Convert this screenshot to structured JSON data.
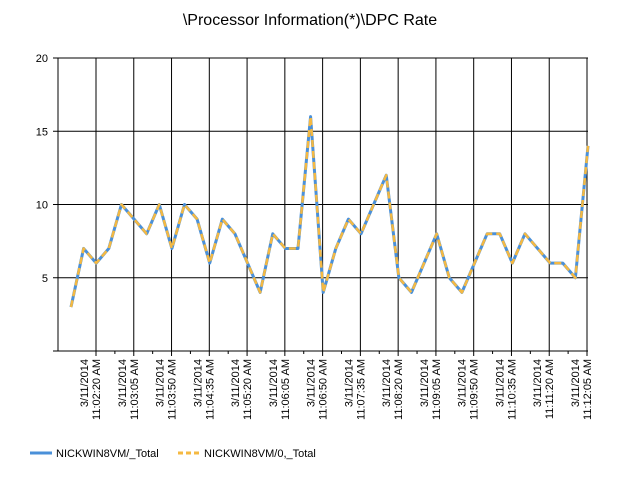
{
  "chart_data": {
    "type": "line",
    "title": "\\Processor Information(*)\\DPC Rate",
    "xlabel": "",
    "ylabel": "",
    "ylim": [
      0,
      20
    ],
    "yticks": [
      5,
      10,
      15,
      20
    ],
    "grid": true,
    "legend_position": "bottom-left",
    "x_tick_labels": [
      [
        "3/11/2014",
        "11:02:20 AM"
      ],
      [
        "3/11/2014",
        "11:03:05 AM"
      ],
      [
        "3/11/2014",
        "11:03:50 AM"
      ],
      [
        "3/11/2014",
        "11:04:35 AM"
      ],
      [
        "3/11/2014",
        "11:05:20 AM"
      ],
      [
        "3/11/2014",
        "11:06:05 AM"
      ],
      [
        "3/11/2014",
        "11:06:50 AM"
      ],
      [
        "3/11/2014",
        "11:07:35 AM"
      ],
      [
        "3/11/2014",
        "11:08:20 AM"
      ],
      [
        "3/11/2014",
        "11:09:05 AM"
      ],
      [
        "3/11/2014",
        "11:09:50 AM"
      ],
      [
        "3/11/2014",
        "11:10:35 AM"
      ],
      [
        "3/11/2014",
        "11:11:20 AM"
      ],
      [
        "3/11/2014",
        "11:12:05 AM"
      ]
    ],
    "series": [
      {
        "name": "NICKWIN8VM/_Total",
        "color": "#4a90d9",
        "style": "solid",
        "values": [
          3,
          7,
          6,
          7,
          10,
          9,
          8,
          10,
          7,
          10,
          9,
          6,
          9,
          8,
          6,
          4,
          8,
          7,
          7,
          16,
          4,
          7,
          9,
          8,
          10,
          12,
          5,
          4,
          6,
          8,
          5,
          4,
          6,
          8,
          8,
          6,
          8,
          7,
          6,
          6,
          5,
          14
        ]
      },
      {
        "name": "NICKWIN8VM/0,_Total",
        "color": "#f5b942",
        "style": "dashed",
        "values": [
          3,
          7,
          6,
          7,
          10,
          9,
          8,
          10,
          7,
          10,
          9,
          6,
          9,
          8,
          6,
          4,
          8,
          7,
          7,
          16,
          4,
          7,
          9,
          8,
          10,
          12,
          5,
          4,
          6,
          8,
          5,
          4,
          6,
          8,
          8,
          6,
          8,
          7,
          6,
          6,
          5,
          14
        ]
      }
    ]
  }
}
